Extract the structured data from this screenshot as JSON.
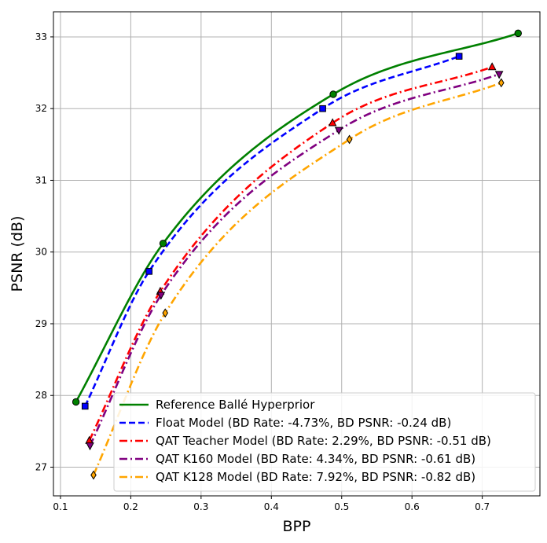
{
  "chart_data": {
    "type": "line",
    "title": "",
    "xlabel": "BPP",
    "ylabel": "PSNR (dB)",
    "xlim": [
      0.09,
      0.782
    ],
    "ylim": [
      26.6,
      33.35
    ],
    "xticks": [
      0.1,
      0.2,
      0.3,
      0.4,
      0.5,
      0.6,
      0.7
    ],
    "yticks": [
      27,
      28,
      29,
      30,
      31,
      32,
      33
    ],
    "xtick_labels": [
      "0.1",
      "0.2",
      "0.3",
      "0.4",
      "0.5",
      "0.6",
      "0.7"
    ],
    "ytick_labels": [
      "27",
      "28",
      "29",
      "30",
      "31",
      "32",
      "33"
    ],
    "grid": true,
    "legend_position": "lower-right",
    "series": [
      {
        "name": "Reference Ballé Hyperprior",
        "color": "#008000",
        "line_style": "solid",
        "marker": "circle",
        "x": [
          0.122,
          0.246,
          0.488,
          0.751
        ],
        "y": [
          27.91,
          30.12,
          32.2,
          33.05
        ]
      },
      {
        "name": "Float Model (BD Rate: -4.73%, BD PSNR: -0.24 dB)",
        "color": "#0000ff",
        "line_style": "dashed",
        "marker": "square",
        "x": [
          0.135,
          0.226,
          0.473,
          0.667
        ],
        "y": [
          27.85,
          29.73,
          32.0,
          32.73
        ]
      },
      {
        "name": "QAT Teacher Model (BD Rate: 2.29%, BD PSNR: -0.51 dB)",
        "color": "#ff0000",
        "line_style": "dashdot",
        "marker": "triangle-up",
        "x": [
          0.141,
          0.242,
          0.487,
          0.714
        ],
        "y": [
          27.37,
          29.45,
          31.8,
          32.58
        ]
      },
      {
        "name": "QAT K160 Model (BD Rate: 4.34%, BD PSNR: -0.61 dB)",
        "color": "#800080",
        "line_style": "dashdot",
        "marker": "triangle-down",
        "x": [
          0.142,
          0.243,
          0.496,
          0.724
        ],
        "y": [
          27.3,
          29.4,
          31.7,
          32.48
        ]
      },
      {
        "name": "QAT K128 Model (BD Rate: 7.92%, BD PSNR: -0.82 dB)",
        "color": "#ffa500",
        "line_style": "dashdot",
        "marker": "diamond",
        "x": [
          0.147,
          0.249,
          0.511,
          0.727
        ],
        "y": [
          26.89,
          29.15,
          31.57,
          32.36
        ]
      }
    ]
  }
}
